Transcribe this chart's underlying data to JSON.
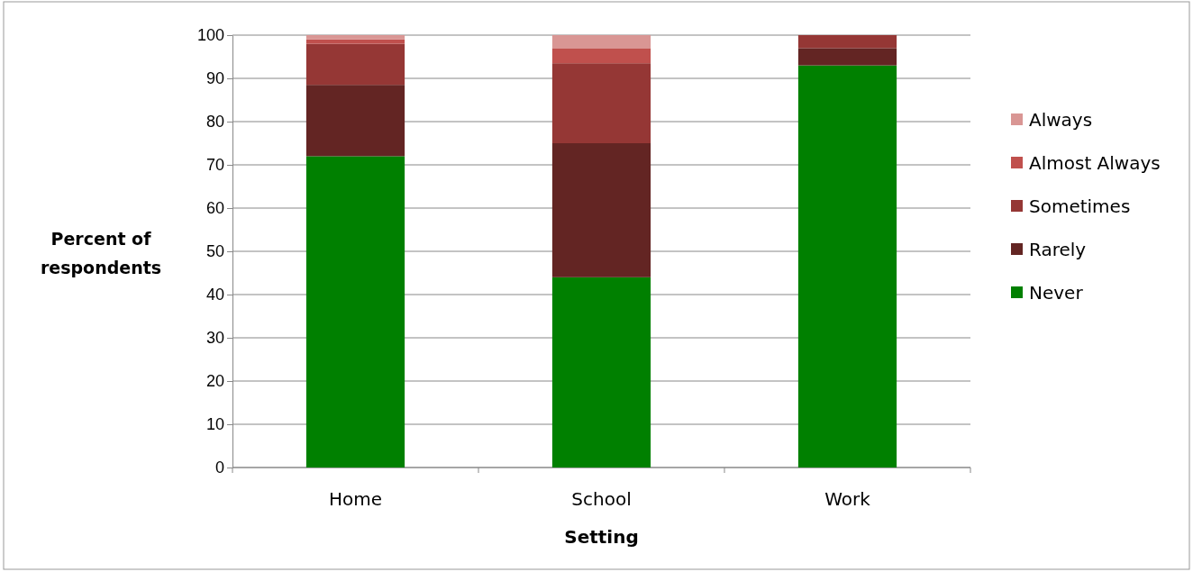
{
  "chart_data": {
    "type": "bar",
    "stacked": true,
    "xlabel": "Setting",
    "ylabel": "Percent of respondents",
    "categories": [
      "Home",
      "School",
      "Work"
    ],
    "series": [
      {
        "name": "Never",
        "color": "#008000",
        "values": [
          72,
          44,
          93
        ]
      },
      {
        "name": "Rarely",
        "color": "#632523",
        "values": [
          16.5,
          31,
          4
        ]
      },
      {
        "name": "Sometimes",
        "color": "#953735",
        "values": [
          9.5,
          18.5,
          3
        ]
      },
      {
        "name": "Almost Always",
        "color": "#c0504d",
        "values": [
          1,
          3.5,
          0
        ]
      },
      {
        "name": "Always",
        "color": "#d99694",
        "values": [
          1,
          3,
          0
        ]
      }
    ],
    "ylim": [
      0,
      100
    ],
    "yticks": [
      0,
      10,
      20,
      30,
      40,
      50,
      60,
      70,
      80,
      90,
      100
    ],
    "grid": "y",
    "legend": "right"
  }
}
